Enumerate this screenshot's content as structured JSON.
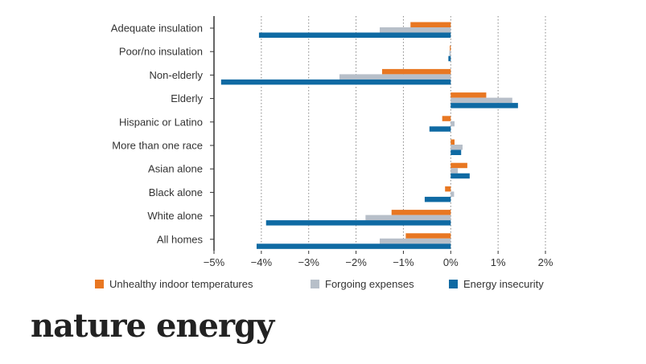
{
  "chart_data": {
    "type": "bar",
    "orientation": "horizontal",
    "categories": [
      "Adequate insulation",
      "Poor/no insulation",
      "Non-elderly",
      "Elderly",
      "Hispanic or Latino",
      "More than one race",
      "Asian alone",
      "Black alone",
      "White alone",
      "All homes"
    ],
    "series": [
      {
        "name": "Unhealthy indoor temperatures",
        "color": "#e87722",
        "values": [
          -0.85,
          -0.02,
          -1.45,
          0.75,
          -0.18,
          0.08,
          0.35,
          -0.12,
          -1.25,
          -0.95
        ]
      },
      {
        "name": "Forgoing expenses",
        "color": "#b7bfc9",
        "values": [
          -1.5,
          -0.03,
          -2.35,
          1.3,
          0.08,
          0.25,
          0.15,
          0.07,
          -1.8,
          -1.5
        ]
      },
      {
        "name": "Energy insecurity",
        "color": "#0f6aa3",
        "values": [
          -4.05,
          -0.05,
          -4.85,
          1.42,
          -0.45,
          0.22,
          0.4,
          -0.55,
          -3.9,
          -4.1
        ]
      }
    ],
    "xlim": [
      -5,
      2
    ],
    "xticks": [
      "−5%",
      "−4%",
      "−3%",
      "−2%",
      "−1%",
      "0%",
      "1%",
      "2%"
    ],
    "grid": "vertical dotted",
    "legend": "bottom"
  },
  "brand": {
    "logo_text": "nature energy"
  }
}
